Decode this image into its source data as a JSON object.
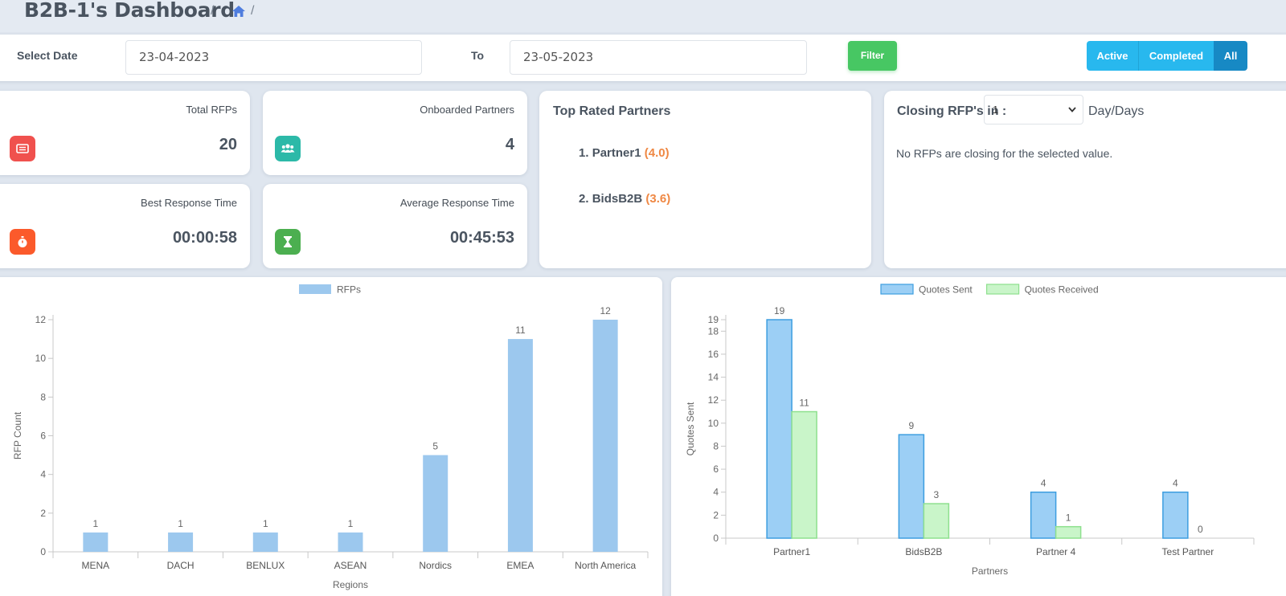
{
  "header": {
    "title": "B2B-1's Dashboard",
    "breadcrumb_separator": "/"
  },
  "filter": {
    "select_date_label": "Select Date",
    "from_date": "23-04-2023",
    "to_label": "To",
    "to_date": "23-05-2023",
    "filter_button": "Filter",
    "status_options": [
      {
        "label": "Active"
      },
      {
        "label": "Completed"
      },
      {
        "label": "All"
      }
    ],
    "selected_status": "All"
  },
  "stats": {
    "total_rfps": {
      "title": "Total RFPs",
      "value": "20",
      "icon": "rfp-list-icon",
      "color": "#f0514e"
    },
    "onboarded_partners": {
      "title": "Onboarded Partners",
      "value": "4",
      "icon": "users-icon",
      "color": "#2cb9a8"
    },
    "best_response": {
      "title": "Best Response Time",
      "value": "00:00:58",
      "icon": "stopwatch-icon",
      "color": "#fb5a2b"
    },
    "avg_response": {
      "title": "Average Response Time",
      "value": "00:45:53",
      "icon": "hourglass-icon",
      "color": "#4caf50"
    }
  },
  "top_rated": {
    "title": "Top Rated Partners",
    "partners": [
      {
        "rank": "1.",
        "name": "Partner1",
        "rating": "(4.0)"
      },
      {
        "rank": "2.",
        "name": "BidsB2B",
        "rating": "(3.6)"
      }
    ]
  },
  "closing": {
    "prefix": "Closing RFP's in :",
    "selected": "1",
    "suffix": "Day/Days",
    "note": "No RFPs are closing for the selected value."
  },
  "chart_data": [
    {
      "type": "bar",
      "legend": [
        "RFPs"
      ],
      "categories": [
        "MENA",
        "DACH",
        "BENLUX",
        "ASEAN",
        "Nordics",
        "EMEA",
        "North America"
      ],
      "series": [
        {
          "name": "RFPs",
          "values": [
            1,
            1,
            1,
            1,
            5,
            11,
            12
          ],
          "color": "#9cc8ee"
        }
      ],
      "ylabel": "RFP Count",
      "xlabel": "Regions",
      "ylim": [
        0,
        12
      ],
      "yticks": [
        0,
        2,
        4,
        6,
        8,
        10,
        12
      ],
      "data_labels": true
    },
    {
      "type": "bar",
      "legend": [
        "Quotes Sent",
        "Quotes Received"
      ],
      "categories": [
        "Partner1",
        "BidsB2B",
        "Partner 4",
        "Test Partner"
      ],
      "series": [
        {
          "name": "Quotes Sent",
          "values": [
            19,
            9,
            4,
            4
          ],
          "color": "#9ccff5",
          "border": "#3d9ee0"
        },
        {
          "name": "Quotes Received",
          "values": [
            11,
            3,
            1,
            0
          ],
          "color": "#c9f5c9",
          "border": "#8ee08e"
        }
      ],
      "ylabel": "Quotes Sent",
      "xlabel": "Partners",
      "ylim": [
        0,
        19
      ],
      "yticks": [
        0,
        2,
        4,
        6,
        8,
        10,
        12,
        14,
        16,
        18,
        19
      ],
      "data_labels": true
    }
  ]
}
